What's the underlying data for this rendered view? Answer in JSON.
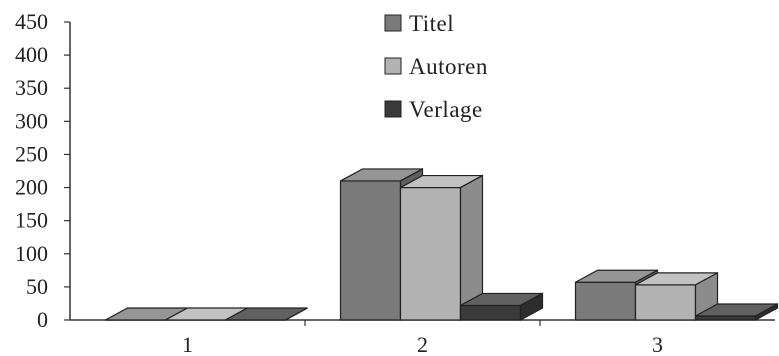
{
  "chart_data": {
    "type": "bar",
    "style": "3d-clustered",
    "title": "",
    "xlabel": "",
    "ylabel": "",
    "categories": [
      "1",
      "2",
      "3"
    ],
    "series": [
      {
        "name": "Titel",
        "values": [
          0,
          210,
          57
        ],
        "color": "#7a7a7a"
      },
      {
        "name": "Autoren",
        "values": [
          0,
          200,
          53
        ],
        "color": "#b3b3b3"
      },
      {
        "name": "Verlage",
        "values": [
          0,
          22,
          6
        ],
        "color": "#3a3a3a"
      }
    ],
    "ylim": [
      0,
      450
    ],
    "yticks": [
      0,
      50,
      100,
      150,
      200,
      250,
      300,
      350,
      400,
      450
    ],
    "grid": false,
    "legend_position": "top-center"
  }
}
